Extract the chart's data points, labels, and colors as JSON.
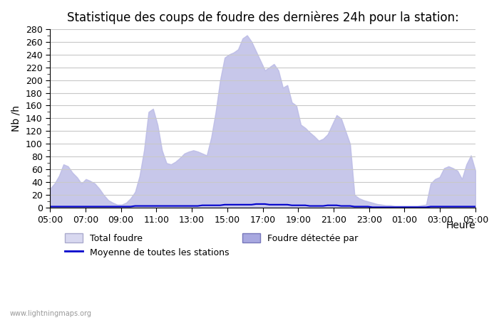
{
  "title": "Statistique des coups de foudre des dernières 24h pour la station:",
  "xlabel": "Heure",
  "ylabel": "Nb /h",
  "watermark": "www.lightningmaps.org",
  "legend_labels": [
    "Total foudre",
    "Foudre détectée par",
    "Moyenne de toutes les stations"
  ],
  "x_ticks": [
    "05:00",
    "07:00",
    "09:00",
    "11:00",
    "13:00",
    "15:00",
    "17:00",
    "19:00",
    "21:00",
    "23:00",
    "01:00",
    "03:00",
    "05:00"
  ],
  "ylim": [
    0,
    280
  ],
  "yticks": [
    0,
    20,
    40,
    60,
    80,
    100,
    120,
    140,
    160,
    180,
    200,
    220,
    240,
    260,
    280
  ],
  "bg_color": "#ffffff",
  "grid_color": "#c8c8c8",
  "fill_color_light": "#d8d8f0",
  "fill_color_dark": "#a8a8e0",
  "line_color": "#0000cc",
  "title_fontsize": 12,
  "total": [
    30,
    38,
    50,
    68,
    65,
    55,
    48,
    38,
    45,
    42,
    38,
    30,
    20,
    12,
    8,
    5,
    5,
    8,
    15,
    25,
    50,
    90,
    150,
    155,
    130,
    90,
    70,
    68,
    72,
    78,
    85,
    88,
    90,
    88,
    85,
    82,
    110,
    150,
    200,
    235,
    240,
    243,
    248,
    265,
    270,
    260,
    245,
    230,
    215,
    220,
    225,
    215,
    188,
    192,
    165,
    160,
    130,
    125,
    118,
    112,
    105,
    108,
    115,
    130,
    145,
    140,
    120,
    100,
    20,
    15,
    12,
    10,
    8,
    6,
    5,
    4,
    4,
    3,
    3,
    3,
    3,
    3,
    3,
    4,
    5,
    38,
    45,
    48,
    62,
    65,
    62,
    58,
    45,
    68,
    82,
    58
  ],
  "mean": [
    2,
    2,
    2,
    2,
    2,
    2,
    2,
    2,
    2,
    2,
    2,
    2,
    2,
    2,
    2,
    2,
    2,
    2,
    2,
    3,
    3,
    3,
    3,
    3,
    3,
    3,
    3,
    3,
    3,
    3,
    3,
    3,
    3,
    3,
    4,
    4,
    4,
    4,
    4,
    5,
    5,
    5,
    5,
    5,
    5,
    5,
    6,
    6,
    6,
    5,
    5,
    5,
    5,
    5,
    4,
    4,
    4,
    4,
    3,
    3,
    3,
    3,
    4,
    4,
    4,
    3,
    3,
    3,
    2,
    2,
    2,
    2,
    1,
    1,
    1,
    1,
    1,
    1,
    1,
    1,
    1,
    1,
    1,
    1,
    1,
    2,
    2,
    2,
    2,
    2,
    2,
    2,
    2,
    2,
    2,
    2
  ]
}
